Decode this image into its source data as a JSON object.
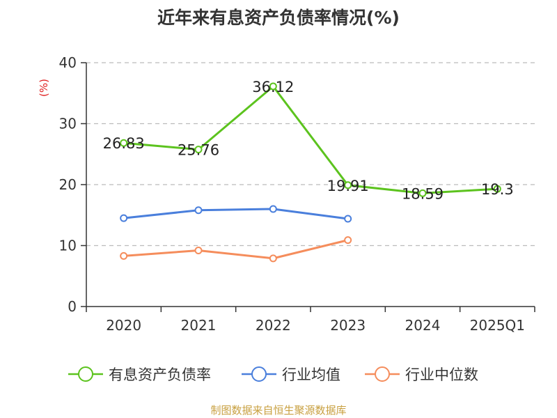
{
  "title": "近年来有息资产负债率情况(%)",
  "source": "制图数据来自恒生聚源数据库",
  "chart_data": {
    "type": "line",
    "title": "近年来有息资产负债率情况(%)",
    "ylabel": "(%)",
    "ylim": [
      0,
      40
    ],
    "yticks": [
      0,
      10,
      20,
      30,
      40
    ],
    "grid": true,
    "legend_position": "bottom",
    "categories": [
      "2020",
      "2021",
      "2022",
      "2023",
      "2024",
      "2025Q1"
    ],
    "series": [
      {
        "name": "有息资产负债率",
        "color": "#5cc31e",
        "values": [
          26.83,
          25.76,
          36.12,
          19.91,
          18.59,
          19.3
        ],
        "labels": [
          "26.83",
          "25.76",
          "36.12",
          "19.91",
          "18.59",
          "19.3"
        ]
      },
      {
        "name": "行业均值",
        "color": "#4a7fdc",
        "values": [
          14.5,
          15.8,
          16.0,
          14.4,
          null,
          null
        ]
      },
      {
        "name": "行业中位数",
        "color": "#f58d5c",
        "values": [
          8.3,
          9.2,
          7.9,
          10.9,
          null,
          null
        ]
      }
    ]
  }
}
